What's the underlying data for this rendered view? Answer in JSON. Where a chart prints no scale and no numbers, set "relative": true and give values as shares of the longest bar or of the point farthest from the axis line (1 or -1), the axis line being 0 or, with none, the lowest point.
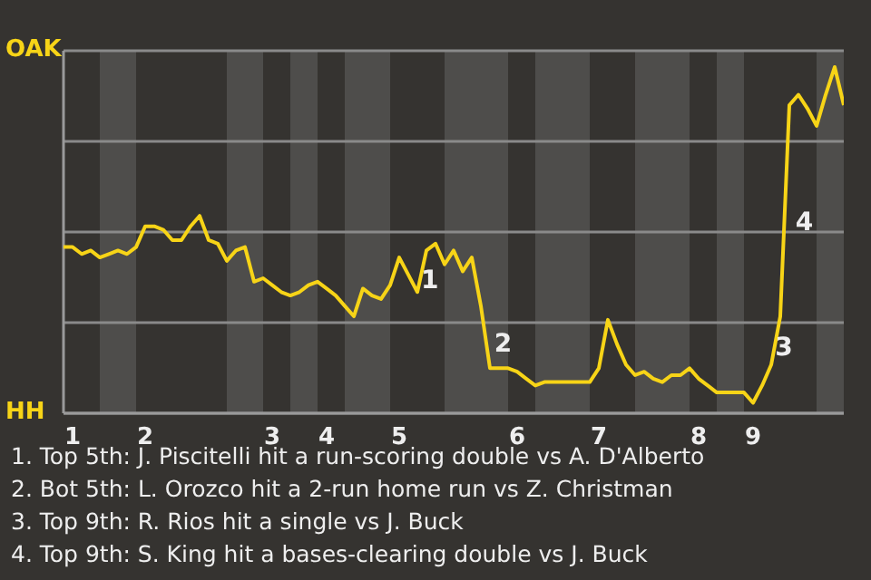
{
  "chart_data": {
    "type": "line",
    "relative": true,
    "categories": [
      null,
      "1",
      null,
      null,
      null,
      null,
      null,
      null,
      null,
      "2",
      null,
      null,
      null,
      null,
      null,
      null,
      null,
      null,
      null,
      null,
      null,
      null,
      null,
      "3",
      null,
      null,
      null,
      null,
      null,
      "4",
      null,
      null,
      null,
      null,
      null,
      null,
      null,
      "5",
      null,
      null,
      null,
      null,
      null,
      null,
      null,
      null,
      null,
      null,
      null,
      null,
      "6",
      null,
      null,
      null,
      null,
      null,
      null,
      null,
      null,
      "7",
      null,
      null,
      null,
      null,
      null,
      null,
      null,
      null,
      null,
      null,
      "8",
      null,
      null,
      null,
      null,
      null,
      "9",
      null,
      null,
      null,
      null,
      null,
      null,
      null,
      null,
      null,
      null
    ],
    "grid": "y",
    "marker": "none",
    "line_style": "solid",
    "series": [
      {
        "color": "#f7d417",
        "values": [
          0.48,
          0.48,
          0.46,
          0.47,
          0.45,
          0.46,
          0.47,
          0.46,
          0.48,
          0.54,
          0.54,
          0.53,
          0.5,
          0.5,
          0.54,
          0.57,
          0.5,
          0.49,
          0.44,
          0.47,
          0.48,
          0.38,
          0.39,
          0.37,
          0.35,
          0.34,
          0.35,
          0.37,
          0.38,
          0.36,
          0.34,
          0.31,
          0.28,
          0.36,
          0.34,
          0.33,
          0.37,
          0.45,
          0.4,
          0.35,
          0.47,
          0.49,
          0.43,
          0.47,
          0.41,
          0.45,
          0.31,
          0.13,
          0.13,
          0.13,
          0.12,
          0.1,
          0.08,
          0.09,
          0.09,
          0.09,
          0.09,
          0.09,
          0.09,
          0.13,
          0.27,
          0.2,
          0.14,
          0.11,
          0.12,
          0.1,
          0.09,
          0.11,
          0.11,
          0.13,
          0.1,
          0.08,
          0.06,
          0.06,
          0.06,
          0.06,
          0.03,
          0.08,
          0.14,
          0.28,
          0.89,
          0.92,
          0.88,
          0.83,
          0.92,
          1,
          0.89
        ]
      }
    ],
    "annotations": [
      "OAK",
      "HH",
      "1",
      "2",
      "3",
      "4",
      "1. Top 5th: J. Piscitelli hit a run-scoring double vs A. D'Alberto",
      "2. Bot 5th: L. Orozco hit a 2-run home run vs Z. Christman",
      "3. Top 9th: R. Rios hit a single vs J. Buck",
      "4. Top 9th: S. King hit a bases-clearing double vs J. Buck"
    ]
  }
}
